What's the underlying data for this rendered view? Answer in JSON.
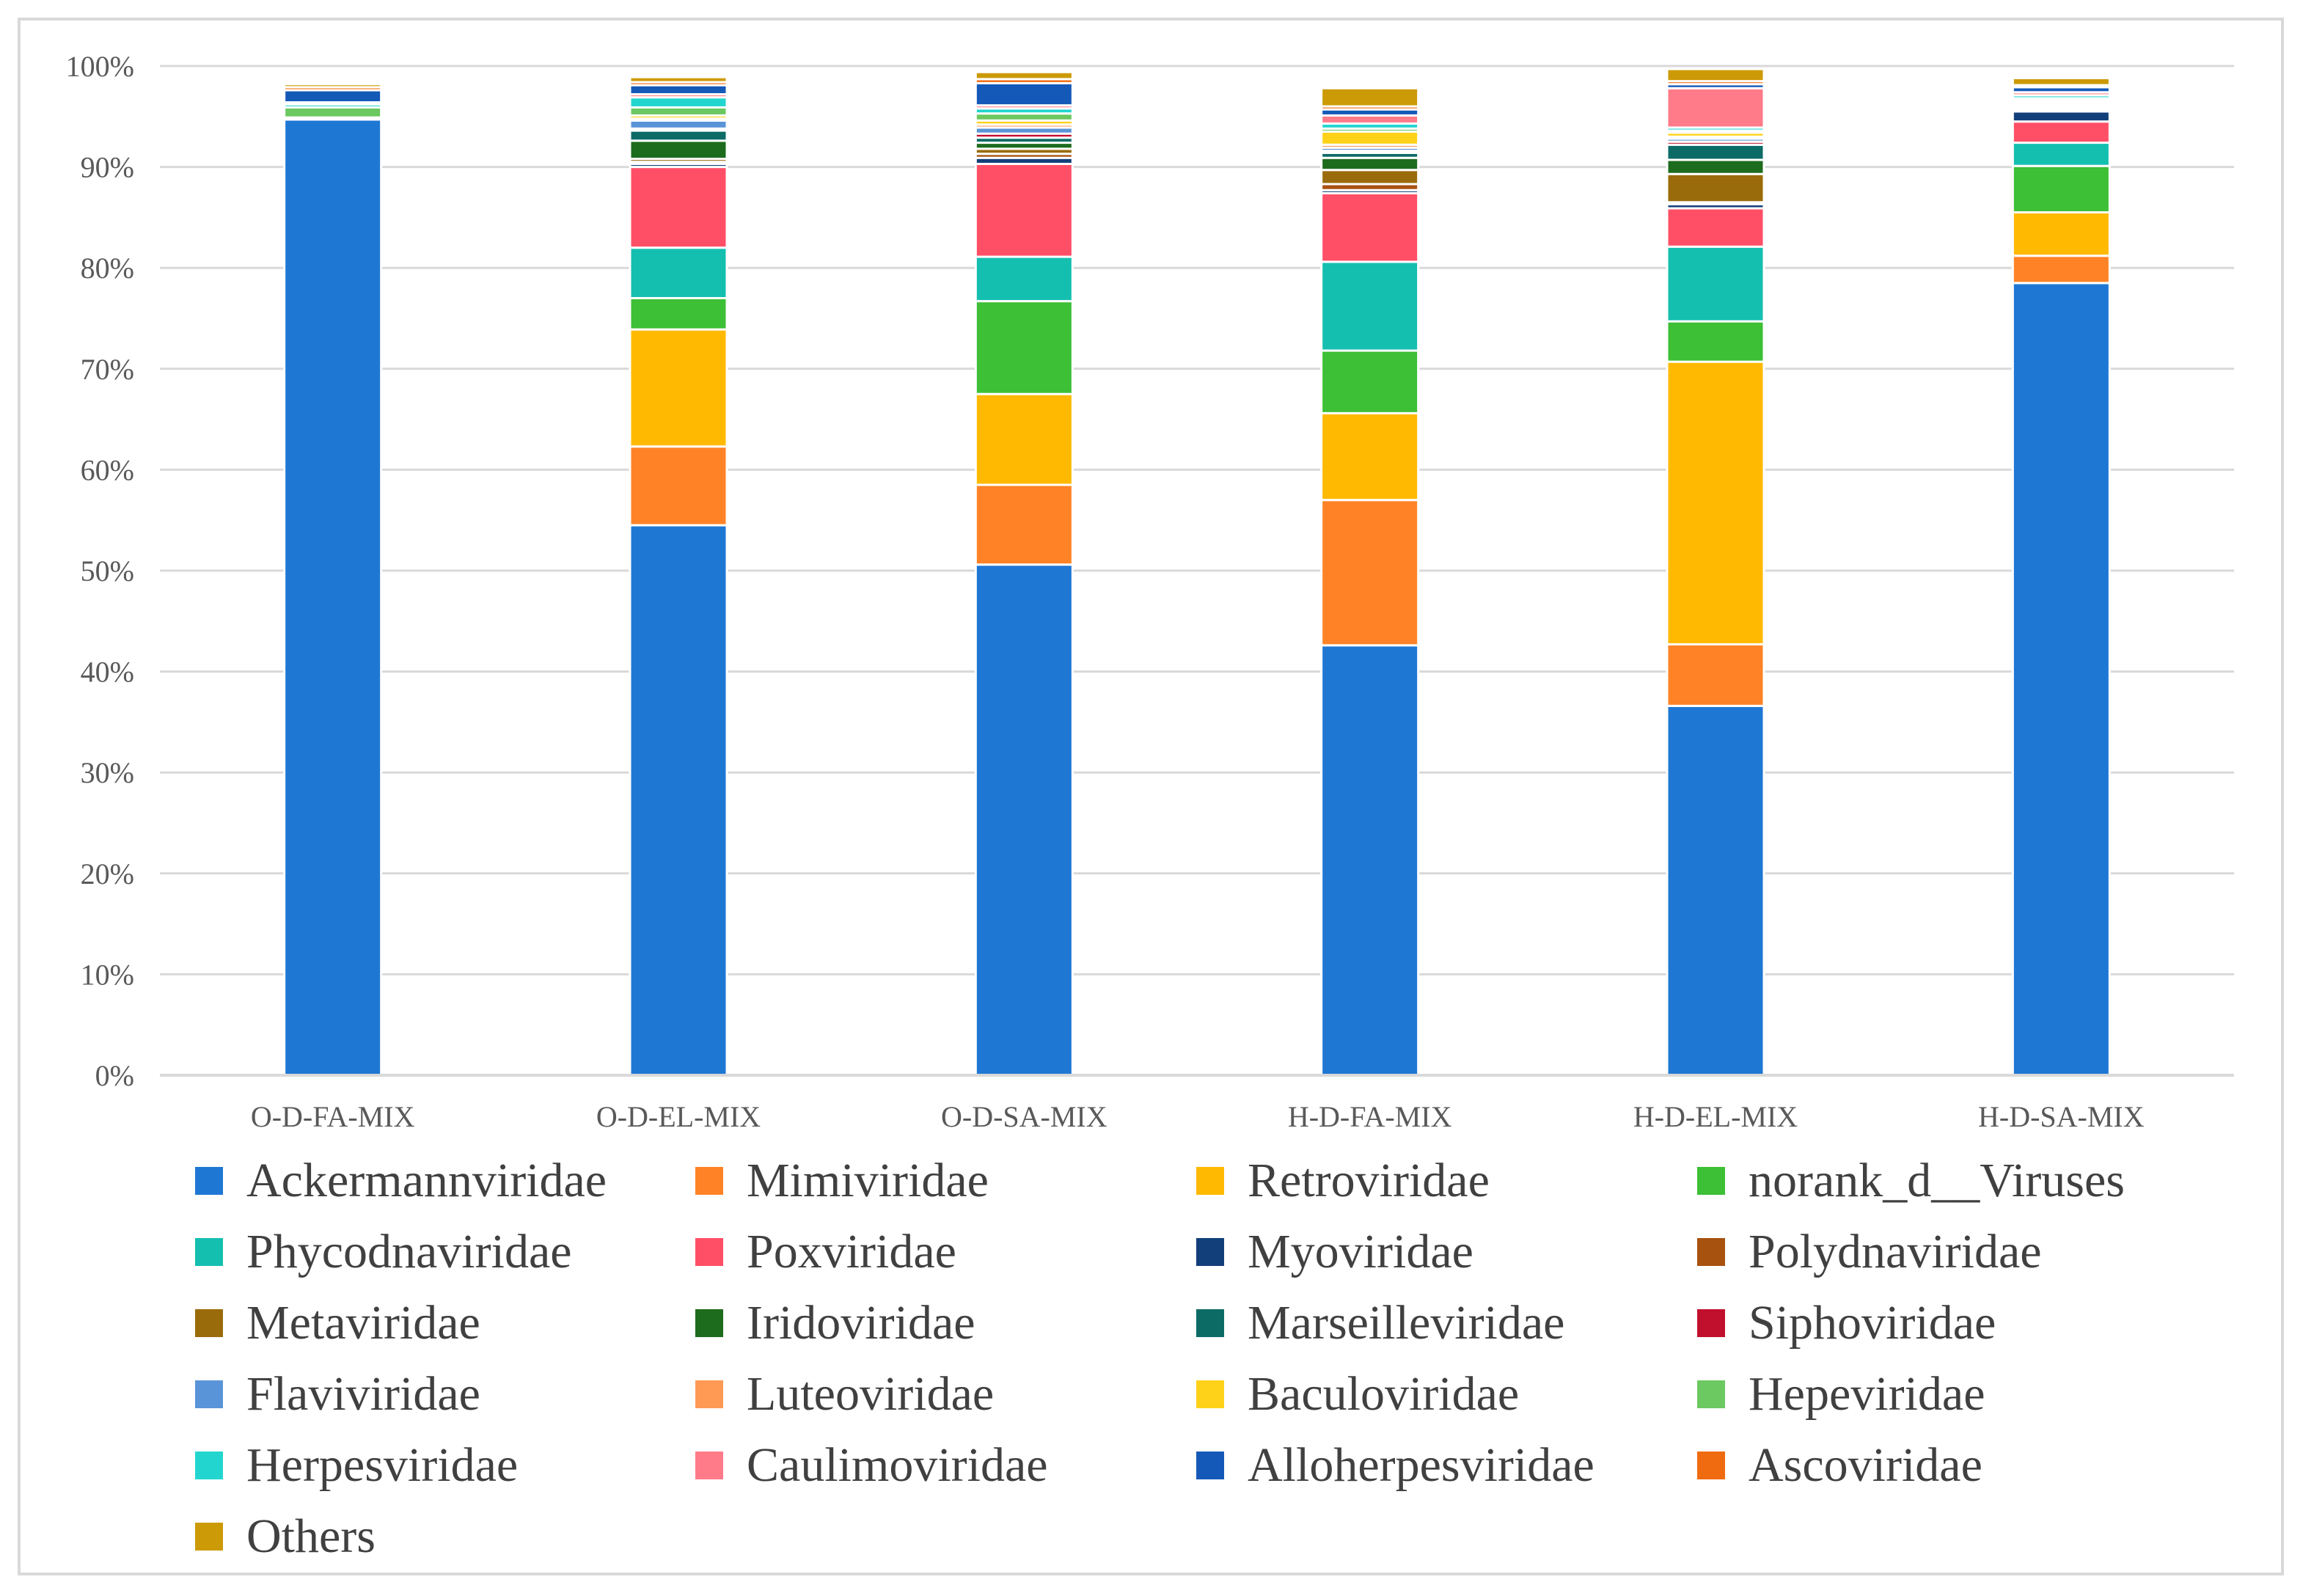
{
  "chart_data": {
    "type": "bar",
    "stacked": true,
    "title": "",
    "xlabel": "",
    "ylabel": "",
    "ylim": [
      0,
      100
    ],
    "yticks": [
      "0%",
      "10%",
      "20%",
      "30%",
      "40%",
      "50%",
      "60%",
      "70%",
      "80%",
      "90%",
      "100%"
    ],
    "grid": true,
    "legend_position": "bottom",
    "categories": [
      "O-D-FA-MIX",
      "O-D-EL-MIX",
      "O-D-SA-MIX",
      "H-D-FA-MIX",
      "H-D-EL-MIX",
      "H-D-SA-MIX"
    ],
    "series": [
      {
        "name": "Ackermannviridae",
        "color": "#1f77d4",
        "values": [
          94.7,
          54.5,
          50.6,
          42.6,
          36.6,
          78.5
        ]
      },
      {
        "name": "Mimiviridae",
        "color": "#ff8326",
        "values": [
          0,
          7.8,
          7.9,
          14.4,
          6.1,
          2.7
        ]
      },
      {
        "name": "Retroviridae",
        "color": "#ffb900",
        "values": [
          0,
          11.6,
          9.0,
          8.6,
          28.0,
          4.3
        ]
      },
      {
        "name": "norank_d__Viruses",
        "color": "#3dbf36",
        "values": [
          0,
          3.1,
          9.2,
          6.2,
          4.0,
          4.6
        ]
      },
      {
        "name": "Phycodnaviridae",
        "color": "#14bfb0",
        "values": [
          0,
          5.0,
          4.4,
          8.8,
          7.4,
          2.3
        ]
      },
      {
        "name": "Poxviridae",
        "color": "#ff4f67",
        "values": [
          0,
          8.0,
          9.2,
          6.8,
          3.8,
          2.1
        ]
      },
      {
        "name": "Myoviridae",
        "color": "#123f7a",
        "values": [
          0,
          0.3,
          0.6,
          0.3,
          0.4,
          1.0
        ]
      },
      {
        "name": "Polydnaviridae",
        "color": "#a85210",
        "values": [
          0,
          0.2,
          0.4,
          0.6,
          0.2,
          0.1
        ]
      },
      {
        "name": "Metaviridae",
        "color": "#9a6b0a",
        "values": [
          0,
          0.3,
          0.5,
          1.4,
          2.8,
          0.1
        ]
      },
      {
        "name": "Iridoviridae",
        "color": "#1d6b1d",
        "values": [
          0,
          1.8,
          0.6,
          1.2,
          1.4,
          0.1
        ]
      },
      {
        "name": "Marseilleviridae",
        "color": "#0d6b66",
        "values": [
          0,
          1.0,
          0.5,
          0.5,
          1.5,
          0.2
        ]
      },
      {
        "name": "Siphoviridae",
        "color": "#c0102e",
        "values": [
          0,
          0.2,
          0.4,
          0.2,
          0.3,
          0.1
        ]
      },
      {
        "name": "Flaviviridae",
        "color": "#5a94d8",
        "values": [
          0,
          0.8,
          0.6,
          0.3,
          0.3,
          0.2
        ]
      },
      {
        "name": "Luteoviridae",
        "color": "#ff9a55",
        "values": [
          0,
          0.2,
          0.3,
          0.3,
          0.2,
          0.1
        ]
      },
      {
        "name": "Baculoviridae",
        "color": "#ffd21a",
        "values": [
          0.2,
          0.3,
          0.4,
          1.3,
          0.4,
          0.2
        ]
      },
      {
        "name": "Hepeviridae",
        "color": "#6cc860",
        "values": [
          1.0,
          0.8,
          0.7,
          0.3,
          0.2,
          0.2
        ]
      },
      {
        "name": "Herpesviridae",
        "color": "#22d6cf",
        "values": [
          0.3,
          1.0,
          0.5,
          0.5,
          0.3,
          0.3
        ]
      },
      {
        "name": "Caulimoviridae",
        "color": "#ff7b8a",
        "values": [
          0.2,
          0.3,
          0.3,
          0.8,
          3.9,
          0.3
        ]
      },
      {
        "name": "Alloherpesviridae",
        "color": "#1559b8",
        "values": [
          1.2,
          0.9,
          2.2,
          0.6,
          0.4,
          0.5
        ]
      },
      {
        "name": "Ascoviridae",
        "color": "#f06a10",
        "values": [
          0.3,
          0.3,
          0.4,
          0.3,
          0.3,
          0.2
        ]
      },
      {
        "name": "Others",
        "color": "#cc9a06",
        "values": [
          0.3,
          0.5,
          0.7,
          1.8,
          1.2,
          0.7
        ]
      }
    ]
  }
}
